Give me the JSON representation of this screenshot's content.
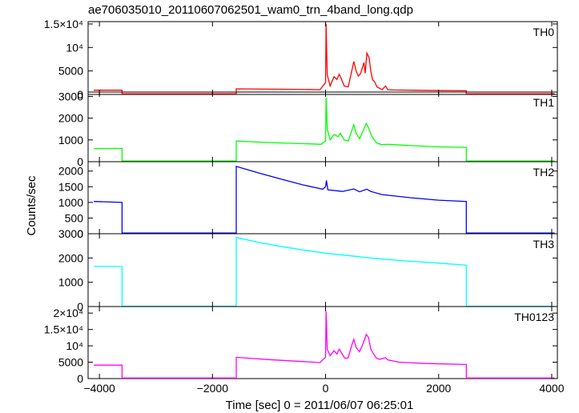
{
  "chart_data": {
    "type": "line",
    "title": "ae706035010_20110607062501_wam0_trn_4band_long.qdp",
    "xlabel": "Time [sec] 0 = 2011/06/07 06:25:01",
    "ylabel": "Counts/sec",
    "xlim": [
      -4200,
      4100
    ],
    "x_ticks": [
      -4000,
      -2000,
      0,
      2000,
      4000
    ],
    "x_tick_labels": [
      "−4000",
      "−2000",
      "0",
      "2000",
      "4000"
    ],
    "grid": false,
    "panels": [
      {
        "name": "TH0",
        "color": "#ff0000",
        "ylim": [
          0,
          15500
        ],
        "y_ticks": [
          0,
          5000,
          10000,
          15000
        ],
        "y_tick_labels": [
          "0",
          "5000",
          "10⁴",
          "1.5×10⁴"
        ],
        "points": [
          [
            -4100,
            900
          ],
          [
            -3600,
            900
          ],
          [
            -3600,
            130
          ],
          [
            -1580,
            130
          ],
          [
            -1580,
            1200
          ],
          [
            -300,
            1050
          ],
          [
            -100,
            1000
          ],
          [
            0,
            2500
          ],
          [
            10,
            15000
          ],
          [
            30,
            4200
          ],
          [
            80,
            1800
          ],
          [
            150,
            3800
          ],
          [
            200,
            3200
          ],
          [
            240,
            4300
          ],
          [
            280,
            3300
          ],
          [
            330,
            1800
          ],
          [
            400,
            1600
          ],
          [
            460,
            4800
          ],
          [
            500,
            7000
          ],
          [
            540,
            5000
          ],
          [
            580,
            3900
          ],
          [
            620,
            4500
          ],
          [
            680,
            6800
          ],
          [
            700,
            4500
          ],
          [
            730,
            8800
          ],
          [
            770,
            7800
          ],
          [
            800,
            5000
          ],
          [
            830,
            3200
          ],
          [
            870,
            2600
          ],
          [
            910,
            1600
          ],
          [
            960,
            1300
          ],
          [
            1000,
            1000
          ],
          [
            1060,
            1800
          ],
          [
            1100,
            1000
          ],
          [
            1200,
            950
          ],
          [
            1600,
            880
          ],
          [
            2100,
            820
          ],
          [
            2490,
            780
          ],
          [
            2490,
            130
          ],
          [
            4050,
            130
          ]
        ]
      },
      {
        "name": "TH1",
        "color": "#00ff00",
        "ylim": [
          0,
          3200
        ],
        "y_ticks": [
          0,
          1000,
          2000,
          3000
        ],
        "y_tick_labels": [
          "0",
          "1000",
          "2000",
          "3000"
        ],
        "points": [
          [
            -4100,
            600
          ],
          [
            -3600,
            610
          ],
          [
            -3600,
            30
          ],
          [
            -1580,
            30
          ],
          [
            -1580,
            950
          ],
          [
            -1000,
            880
          ],
          [
            -300,
            820
          ],
          [
            -80,
            800
          ],
          [
            0,
            950
          ],
          [
            10,
            2950
          ],
          [
            30,
            1500
          ],
          [
            80,
            1000
          ],
          [
            150,
            1250
          ],
          [
            220,
            1150
          ],
          [
            260,
            1300
          ],
          [
            330,
            1000
          ],
          [
            400,
            950
          ],
          [
            460,
            1400
          ],
          [
            500,
            1700
          ],
          [
            540,
            1300
          ],
          [
            600,
            1050
          ],
          [
            660,
            1400
          ],
          [
            720,
            1750
          ],
          [
            770,
            1500
          ],
          [
            810,
            1200
          ],
          [
            860,
            1000
          ],
          [
            910,
            850
          ],
          [
            1000,
            780
          ],
          [
            1100,
            800
          ],
          [
            1500,
            740
          ],
          [
            2000,
            680
          ],
          [
            2490,
            660
          ],
          [
            2490,
            30
          ],
          [
            4050,
            30
          ]
        ]
      },
      {
        "name": "TH2",
        "color": "#0000ff",
        "ylim": [
          0,
          2300
        ],
        "y_ticks": [
          0,
          500,
          1000,
          1500,
          2000
        ],
        "y_tick_labels": [
          "0",
          "500",
          "1000",
          "1500",
          "2000"
        ],
        "points": [
          [
            -4100,
            1030
          ],
          [
            -3600,
            1000
          ],
          [
            -3600,
            20
          ],
          [
            -1580,
            20
          ],
          [
            -1580,
            2150
          ],
          [
            -1200,
            1950
          ],
          [
            -800,
            1750
          ],
          [
            -400,
            1560
          ],
          [
            -50,
            1420
          ],
          [
            0,
            1500
          ],
          [
            15,
            1700
          ],
          [
            40,
            1400
          ],
          [
            300,
            1350
          ],
          [
            500,
            1430
          ],
          [
            600,
            1340
          ],
          [
            730,
            1420
          ],
          [
            800,
            1350
          ],
          [
            1000,
            1250
          ],
          [
            1500,
            1150
          ],
          [
            2000,
            1070
          ],
          [
            2490,
            1030
          ],
          [
            2490,
            20
          ],
          [
            4050,
            20
          ]
        ]
      },
      {
        "name": "TH3",
        "color": "#00ffff",
        "ylim": [
          0,
          3000
        ],
        "y_ticks": [
          0,
          1000,
          2000,
          3000
        ],
        "y_tick_labels": [
          "0",
          "1000",
          "2000",
          "3000"
        ],
        "points": [
          [
            -4100,
            1650
          ],
          [
            -3600,
            1650
          ],
          [
            -3600,
            10
          ],
          [
            -1580,
            10
          ],
          [
            -1580,
            2850
          ],
          [
            -1200,
            2650
          ],
          [
            -800,
            2480
          ],
          [
            -400,
            2330
          ],
          [
            0,
            2200
          ],
          [
            400,
            2100
          ],
          [
            800,
            2000
          ],
          [
            1200,
            1920
          ],
          [
            1600,
            1850
          ],
          [
            2000,
            1790
          ],
          [
            2490,
            1700
          ],
          [
            2490,
            10
          ],
          [
            4050,
            10
          ]
        ]
      },
      {
        "name": "TH0123",
        "color": "#ff00ff",
        "ylim": [
          0,
          22000
        ],
        "y_ticks": [
          0,
          5000,
          10000,
          15000,
          20000
        ],
        "y_tick_labels": [
          "0",
          "5000",
          "10⁴",
          "1.5×10⁴",
          "2×10⁴"
        ],
        "points": [
          [
            -4100,
            4100
          ],
          [
            -3600,
            4100
          ],
          [
            -3600,
            180
          ],
          [
            -1580,
            180
          ],
          [
            -1580,
            6500
          ],
          [
            -1000,
            5800
          ],
          [
            -300,
            5100
          ],
          [
            -100,
            4900
          ],
          [
            0,
            6500
          ],
          [
            10,
            20500
          ],
          [
            30,
            9000
          ],
          [
            80,
            7000
          ],
          [
            150,
            8500
          ],
          [
            200,
            7500
          ],
          [
            240,
            9000
          ],
          [
            290,
            7600
          ],
          [
            340,
            6200
          ],
          [
            400,
            6300
          ],
          [
            460,
            10000
          ],
          [
            500,
            12000
          ],
          [
            540,
            9500
          ],
          [
            600,
            8200
          ],
          [
            660,
            10500
          ],
          [
            720,
            13500
          ],
          [
            760,
            12500
          ],
          [
            800,
            9000
          ],
          [
            850,
            7500
          ],
          [
            900,
            6200
          ],
          [
            960,
            5900
          ],
          [
            1060,
            6400
          ],
          [
            1100,
            5700
          ],
          [
            1300,
            5000
          ],
          [
            1800,
            4600
          ],
          [
            2490,
            4300
          ],
          [
            2490,
            180
          ],
          [
            4050,
            180
          ]
        ]
      }
    ]
  }
}
